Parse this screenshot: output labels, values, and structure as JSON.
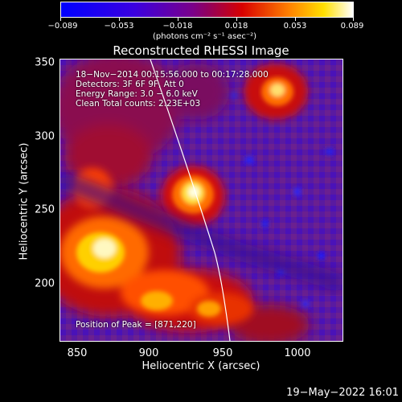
{
  "colorbar": {
    "ticks": [
      "−0.089",
      "−0.053",
      "−0.018",
      "0.018",
      "0.053",
      "0.089"
    ],
    "units": "(photons cm⁻² s⁻¹ asec⁻²)"
  },
  "title": "Reconstructed RHESSI Image",
  "annotations": {
    "time": "18−Nov−2014 00:15:56.000 to 00:17:28.000",
    "detectors": "Detectors: 3F 6F 9F, Att 0",
    "energy": "Energy Range: 3.0 − 6.0 keV",
    "method": "Clean      Total counts: 2.23E+03",
    "peak": "Position of Peak = [871,220]"
  },
  "axes": {
    "xlabel": "Heliocentric X (arcsec)",
    "ylabel": "Heliocentric Y (arcsec)",
    "xticks": [
      "850",
      "900",
      "950",
      "1000"
    ],
    "yticks": [
      "350",
      "300",
      "250",
      "200"
    ]
  },
  "datestamp": "19−May−2022 16:01"
}
